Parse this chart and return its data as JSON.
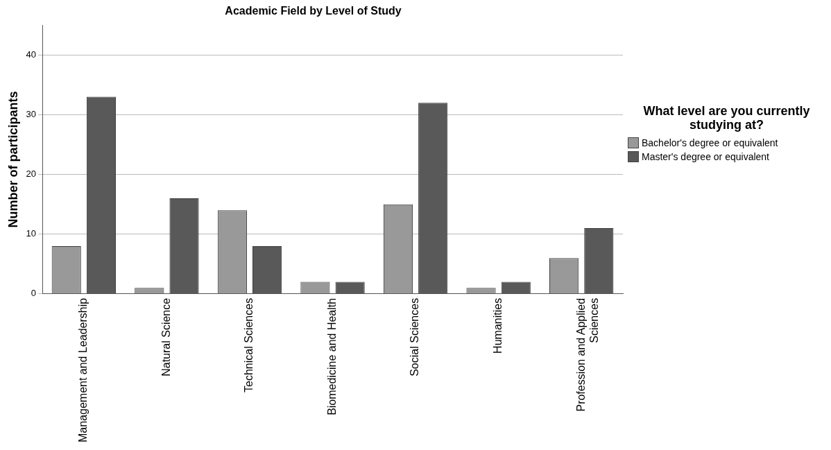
{
  "chart_data": {
    "type": "bar",
    "title": "Academic Field by Level of Study",
    "ylabel": "Number of participants",
    "legend_title": "What level are you currently studying at?",
    "categories": [
      "Management and Leadership",
      "Natural Science",
      "Technical Sciences",
      "Biomedicine and Health",
      "Social Sciences",
      "Humanities",
      "Profession and Applied Sciences"
    ],
    "series": [
      {
        "name": "Bachelor's degree or equivalent",
        "color": "#999999",
        "values": [
          8,
          1,
          14,
          2,
          15,
          1,
          6
        ]
      },
      {
        "name": "Master's degree or equivalent",
        "color": "#595959",
        "values": [
          33,
          16,
          8,
          2,
          32,
          2,
          11
        ]
      }
    ],
    "ylim": [
      0,
      45
    ],
    "yticks": [
      0,
      10,
      20,
      30,
      40
    ],
    "grid": "y",
    "legend": "right"
  }
}
